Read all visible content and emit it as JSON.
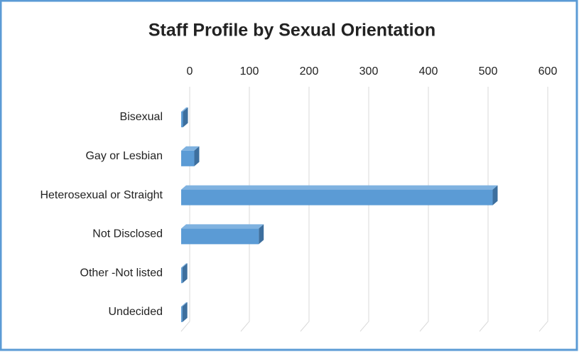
{
  "chart_data": {
    "type": "bar3d",
    "orientation": "horizontal",
    "title": "Staff Profile by Sexual Orientation",
    "categories": [
      "Bisexual",
      "Gay or Lesbian",
      "Heterosexual or Straight",
      "Not Disclosed",
      "Other -Not listed",
      "Undecided"
    ],
    "values": [
      3,
      22,
      522,
      130,
      2,
      2
    ],
    "color": "#5b9bd5",
    "xlim": [
      0,
      600
    ],
    "xticks": [
      0,
      100,
      200,
      300,
      400,
      500,
      600
    ],
    "grid": true
  }
}
